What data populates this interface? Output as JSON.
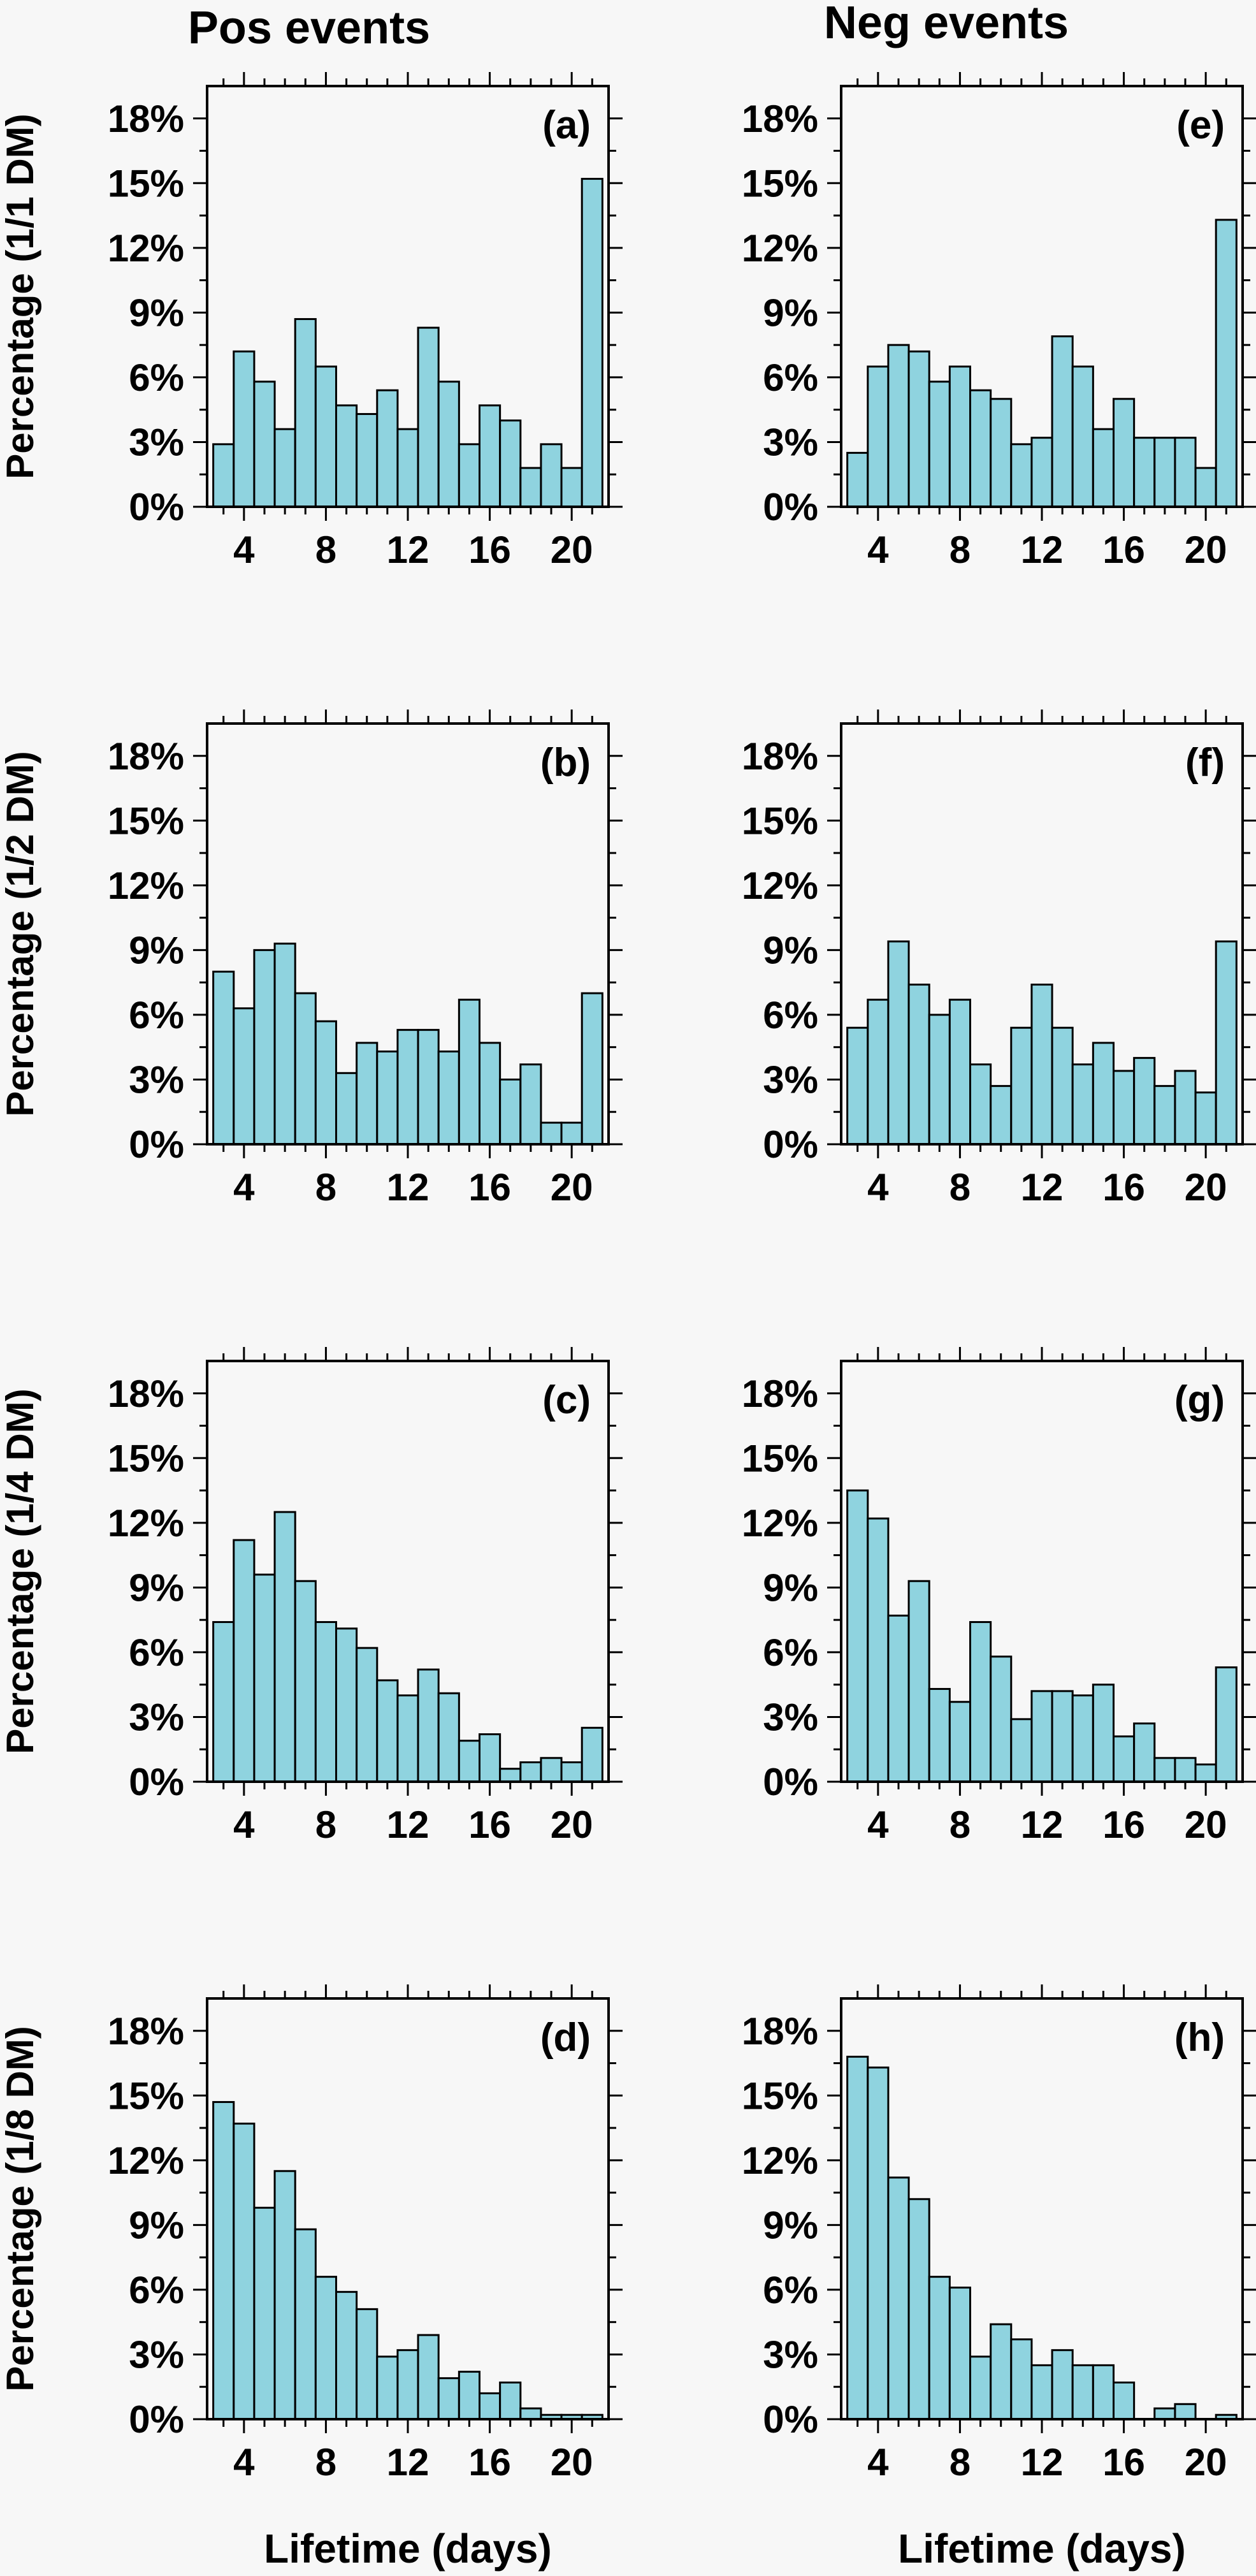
{
  "column_titles": [
    "Pos events",
    "Neg events"
  ],
  "xlabel": "Lifetime (days)",
  "chart_data": [
    {
      "type": "bar",
      "panel": "(a)",
      "column": "Pos events",
      "ylabel": "Percentage (1/1 DM)",
      "x": [
        3,
        4,
        5,
        6,
        7,
        8,
        9,
        10,
        11,
        12,
        13,
        14,
        15,
        16,
        17,
        18,
        19,
        20,
        21
      ],
      "values": [
        2.9,
        7.2,
        5.8,
        3.6,
        8.7,
        6.5,
        4.7,
        4.3,
        5.4,
        3.6,
        8.3,
        5.8,
        2.9,
        4.7,
        4.0,
        1.8,
        2.9,
        1.8,
        15.2
      ],
      "xticks": [
        "4",
        "8",
        "12",
        "16",
        "20"
      ],
      "yticks": [
        "0%",
        "3%",
        "6%",
        "9%",
        "12%",
        "15%",
        "18%"
      ],
      "ylim": [
        0,
        19.5
      ],
      "xlim": [
        2.2,
        21.8
      ]
    },
    {
      "type": "bar",
      "panel": "(b)",
      "column": "Pos events",
      "ylabel": "Percentage (1/2 DM)",
      "x": [
        3,
        4,
        5,
        6,
        7,
        8,
        9,
        10,
        11,
        12,
        13,
        14,
        15,
        16,
        17,
        18,
        19,
        20,
        21
      ],
      "values": [
        8.0,
        6.3,
        9.0,
        9.3,
        7.0,
        5.7,
        3.3,
        4.7,
        4.3,
        5.3,
        5.3,
        4.3,
        6.7,
        4.7,
        3.0,
        3.7,
        1.0,
        1.0,
        7.0
      ],
      "xticks": [
        "4",
        "8",
        "12",
        "16",
        "20"
      ],
      "yticks": [
        "0%",
        "3%",
        "6%",
        "9%",
        "12%",
        "15%",
        "18%"
      ],
      "ylim": [
        0,
        19.5
      ],
      "xlim": [
        2.2,
        21.8
      ]
    },
    {
      "type": "bar",
      "panel": "(c)",
      "column": "Pos events",
      "ylabel": "Percentage (1/4 DM)",
      "x": [
        3,
        4,
        5,
        6,
        7,
        8,
        9,
        10,
        11,
        12,
        13,
        14,
        15,
        16,
        17,
        18,
        19,
        20,
        21
      ],
      "values": [
        7.4,
        11.2,
        9.6,
        12.5,
        9.3,
        7.4,
        7.1,
        6.2,
        4.7,
        4.0,
        5.2,
        4.1,
        1.9,
        2.2,
        0.6,
        0.9,
        1.1,
        0.9,
        2.5
      ],
      "xticks": [
        "4",
        "8",
        "12",
        "16",
        "20"
      ],
      "yticks": [
        "0%",
        "3%",
        "6%",
        "9%",
        "12%",
        "15%",
        "18%"
      ],
      "ylim": [
        0,
        19.5
      ],
      "xlim": [
        2.2,
        21.8
      ]
    },
    {
      "type": "bar",
      "panel": "(d)",
      "column": "Pos events",
      "ylabel": "Percentage (1/8 DM)",
      "x": [
        3,
        4,
        5,
        6,
        7,
        8,
        9,
        10,
        11,
        12,
        13,
        14,
        15,
        16,
        17,
        18,
        19,
        20,
        21
      ],
      "values": [
        14.7,
        13.7,
        9.8,
        11.5,
        8.8,
        6.6,
        5.9,
        5.1,
        2.9,
        3.2,
        3.9,
        1.9,
        2.2,
        1.2,
        1.7,
        0.5,
        0.2,
        0.2,
        0.2
      ],
      "xticks": [
        "4",
        "8",
        "12",
        "16",
        "20"
      ],
      "yticks": [
        "0%",
        "3%",
        "6%",
        "9%",
        "12%",
        "15%",
        "18%"
      ],
      "ylim": [
        0,
        19.5
      ],
      "xlim": [
        2.2,
        21.8
      ]
    },
    {
      "type": "bar",
      "panel": "(e)",
      "column": "Neg events",
      "ylabel": "",
      "x": [
        3,
        4,
        5,
        6,
        7,
        8,
        9,
        10,
        11,
        12,
        13,
        14,
        15,
        16,
        17,
        18,
        19,
        20,
        21
      ],
      "values": [
        2.5,
        6.5,
        7.5,
        7.2,
        5.8,
        6.5,
        5.4,
        5.0,
        2.9,
        3.2,
        7.9,
        6.5,
        3.6,
        5.0,
        3.2,
        3.2,
        3.2,
        1.8,
        13.3
      ],
      "xticks": [
        "4",
        "8",
        "12",
        "16",
        "20"
      ],
      "yticks": [
        "0%",
        "3%",
        "6%",
        "9%",
        "12%",
        "15%",
        "18%"
      ],
      "ylim": [
        0,
        19.5
      ],
      "xlim": [
        2.2,
        21.8
      ]
    },
    {
      "type": "bar",
      "panel": "(f)",
      "column": "Neg events",
      "ylabel": "",
      "x": [
        3,
        4,
        5,
        6,
        7,
        8,
        9,
        10,
        11,
        12,
        13,
        14,
        15,
        16,
        17,
        18,
        19,
        20,
        21
      ],
      "values": [
        5.4,
        6.7,
        9.4,
        7.4,
        6.0,
        6.7,
        3.7,
        2.7,
        5.4,
        7.4,
        5.4,
        3.7,
        4.7,
        3.4,
        4.0,
        2.7,
        3.4,
        2.4,
        9.4
      ],
      "xticks": [
        "4",
        "8",
        "12",
        "16",
        "20"
      ],
      "yticks": [
        "0%",
        "3%",
        "6%",
        "9%",
        "12%",
        "15%",
        "18%"
      ],
      "ylim": [
        0,
        19.5
      ],
      "xlim": [
        2.2,
        21.8
      ]
    },
    {
      "type": "bar",
      "panel": "(g)",
      "column": "Neg events",
      "ylabel": "",
      "x": [
        3,
        4,
        5,
        6,
        7,
        8,
        9,
        10,
        11,
        12,
        13,
        14,
        15,
        16,
        17,
        18,
        19,
        20,
        21
      ],
      "values": [
        13.5,
        12.2,
        7.7,
        9.3,
        4.3,
        3.7,
        7.4,
        5.8,
        2.9,
        4.2,
        4.2,
        4.0,
        4.5,
        2.1,
        2.7,
        1.1,
        1.1,
        0.8,
        5.3
      ],
      "xticks": [
        "4",
        "8",
        "12",
        "16",
        "20"
      ],
      "yticks": [
        "0%",
        "3%",
        "6%",
        "9%",
        "12%",
        "15%",
        "18%"
      ],
      "ylim": [
        0,
        19.5
      ],
      "xlim": [
        2.2,
        21.8
      ]
    },
    {
      "type": "bar",
      "panel": "(h)",
      "column": "Neg events",
      "ylabel": "",
      "x": [
        3,
        4,
        5,
        6,
        7,
        8,
        9,
        10,
        11,
        12,
        13,
        14,
        15,
        16,
        17,
        18,
        19,
        20,
        21
      ],
      "values": [
        16.8,
        16.3,
        11.2,
        10.2,
        6.6,
        6.1,
        2.9,
        4.4,
        3.7,
        2.5,
        3.2,
        2.5,
        2.5,
        1.7,
        0.0,
        0.5,
        0.7,
        0.0,
        0.2
      ],
      "xticks": [
        "4",
        "8",
        "12",
        "16",
        "20"
      ],
      "yticks": [
        "0%",
        "3%",
        "6%",
        "9%",
        "12%",
        "15%",
        "18%"
      ],
      "ylim": [
        0,
        19.5
      ],
      "xlim": [
        2.2,
        21.8
      ]
    }
  ]
}
